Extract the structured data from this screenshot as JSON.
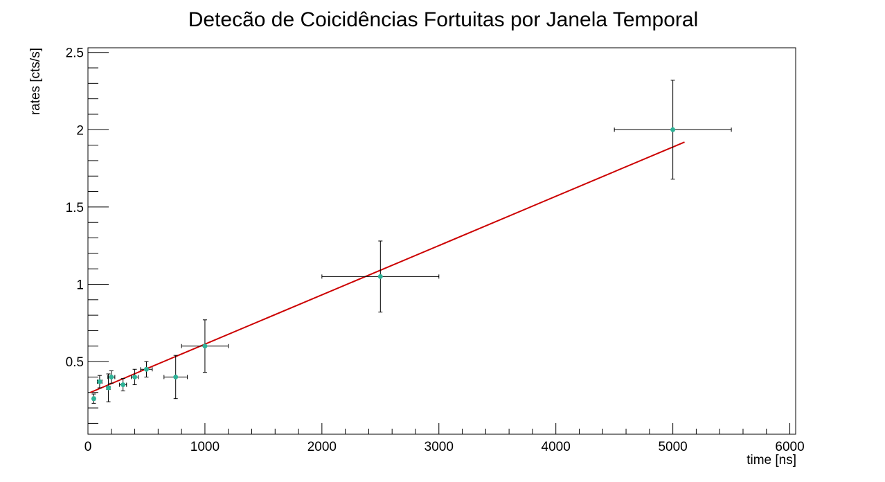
{
  "chart_data": {
    "type": "scatter",
    "title": "Detecão de Coicidências Fortuitas por Janela Temporal",
    "xlabel": "time [ns]",
    "ylabel": "rates [cts/s]",
    "xlim": [
      0,
      6050
    ],
    "ylim": [
      0.03,
      2.53
    ],
    "x_ticks": [
      0,
      1000,
      2000,
      3000,
      4000,
      5000,
      6000
    ],
    "x_tick_labels": [
      "0",
      "1000",
      "2000",
      "3000",
      "4000",
      "5000",
      "6000"
    ],
    "y_ticks": [
      0.5,
      1,
      1.5,
      2,
      2.5
    ],
    "y_tick_labels": [
      "0.5",
      "1",
      "1.5",
      "2",
      "2.5"
    ],
    "grid": false,
    "legend": "none",
    "colors": {
      "marker": "#2fb398",
      "fit_line": "#cc0000",
      "error_bars": "#000000"
    },
    "series": [
      {
        "kind": "points_with_errors",
        "points": [
          {
            "x": 50,
            "y": 0.26,
            "xerr": 10,
            "yerr": 0.03
          },
          {
            "x": 100,
            "y": 0.37,
            "xerr": 20,
            "yerr": 0.04
          },
          {
            "x": 175,
            "y": 0.33,
            "xerr": 15,
            "yerr": 0.09
          },
          {
            "x": 200,
            "y": 0.4,
            "xerr": 30,
            "yerr": 0.04
          },
          {
            "x": 300,
            "y": 0.35,
            "xerr": 30,
            "yerr": 0.04
          },
          {
            "x": 400,
            "y": 0.4,
            "xerr": 30,
            "yerr": 0.05
          },
          {
            "x": 500,
            "y": 0.45,
            "xerr": 50,
            "yerr": 0.05
          },
          {
            "x": 750,
            "y": 0.4,
            "xerr": 100,
            "yerr": 0.14
          },
          {
            "x": 1000,
            "y": 0.6,
            "xerr": 200,
            "yerr": 0.17
          },
          {
            "x": 2500,
            "y": 1.05,
            "xerr": 500,
            "yerr": 0.23
          },
          {
            "x": 5000,
            "y": 2.0,
            "xerr": 500,
            "yerr": 0.32
          }
        ]
      },
      {
        "kind": "fit_line",
        "x": [
          20,
          5100
        ],
        "y": [
          0.3,
          1.92
        ]
      }
    ]
  }
}
